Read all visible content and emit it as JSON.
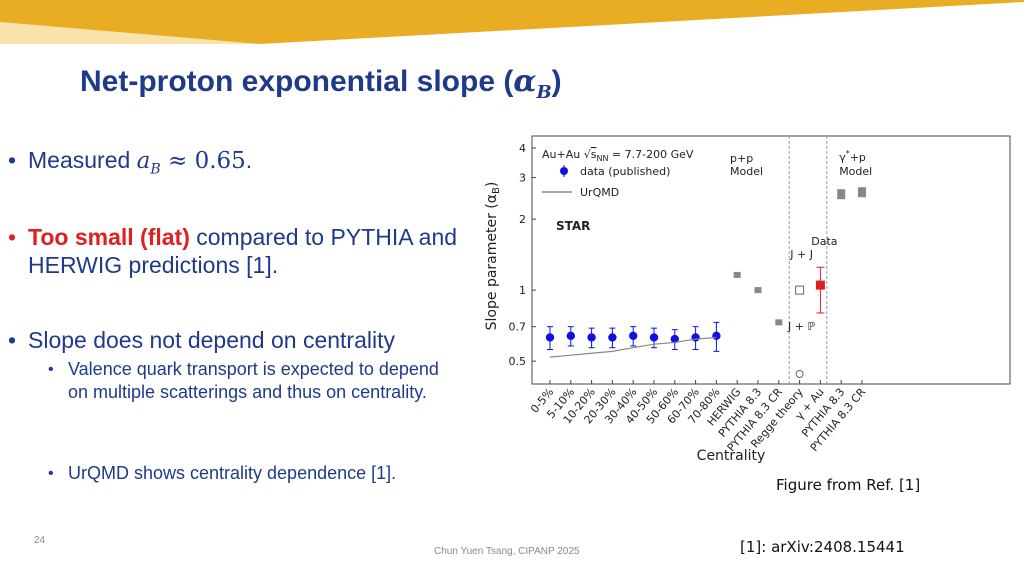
{
  "slide": {
    "title": "Net-proton exponential slope (",
    "title_var": "α",
    "title_sub": "B",
    "title_end": ")",
    "page_number": "24",
    "author": "Chun Yuen Tsang, CIPANP 2025",
    "reference": "[1]: arXiv:2408.15441",
    "figure_caption": "Figure from Ref. [1]",
    "colors": {
      "banner": "#e8ad22",
      "title": "#1f3a8a",
      "highlight": "#e02020"
    }
  },
  "bullets": {
    "b1_prefix": "Measured ",
    "b1_var": "a",
    "b1_sub": "B",
    "b1_approx": " ≈ 0.65",
    "b1_end": ".",
    "b2_red": "Too small (flat)",
    "b2_rest": " compared to PYTHIA and HERWIG predictions [1].",
    "b3": "Slope does not depend on centrality",
    "sub1": "Valence quark transport is expected to depend on multiple scatterings and thus on centrality.",
    "sub2": "UrQMD shows centrality dependence [1]."
  },
  "chart_data": {
    "type": "scatter",
    "xlabel": "Centrality",
    "ylabel": "Slope parameter (α",
    "ylabel_sub": "B",
    "ylabel_end": ")",
    "yscale": "log",
    "ylim": [
      0.4,
      4.5
    ],
    "yticks": [
      {
        "v": 0.5,
        "label": "0.5"
      },
      {
        "v": 0.7,
        "label": "0.7"
      },
      {
        "v": 1,
        "label": "1"
      },
      {
        "v": 2,
        "label": "2"
      },
      {
        "v": 3,
        "label": "3"
      },
      {
        "v": 4,
        "label": "4"
      }
    ],
    "categories": [
      "0-5%",
      "5-10%",
      "10-20%",
      "20-30%",
      "30-40%",
      "40-50%",
      "50-60%",
      "60-70%",
      "70-80%",
      "HERWIG",
      "PYTHIA 8.3",
      "PYTHIA 8.3 CR",
      "Regge theory",
      "γ + Au",
      "PYTHIA 8.3",
      "PYTHIA 8.3 CR"
    ],
    "legend": {
      "line1_a": "Au+Au ",
      "line1_b": "s",
      "line1_c": "NN",
      "line1_d": " = 7.7-200 GeV",
      "data": "data (published)",
      "model": "UrQMD",
      "star": "STAR"
    },
    "series": [
      {
        "name": "data (published)",
        "color": "#1010e0",
        "points": [
          {
            "x": 0,
            "y": 0.63,
            "err": 0.07
          },
          {
            "x": 1,
            "y": 0.64,
            "err": 0.06
          },
          {
            "x": 2,
            "y": 0.63,
            "err": 0.06
          },
          {
            "x": 3,
            "y": 0.63,
            "err": 0.06
          },
          {
            "x": 4,
            "y": 0.64,
            "err": 0.06
          },
          {
            "x": 5,
            "y": 0.63,
            "err": 0.06
          },
          {
            "x": 6,
            "y": 0.62,
            "err": 0.06
          },
          {
            "x": 7,
            "y": 0.63,
            "err": 0.07
          },
          {
            "x": 8,
            "y": 0.64,
            "err": 0.09
          }
        ]
      },
      {
        "name": "UrQMD",
        "color": "#888888",
        "line_x": [
          0,
          1,
          2,
          3,
          4,
          5,
          6,
          7,
          8
        ],
        "line_y": [
          0.52,
          0.53,
          0.54,
          0.55,
          0.57,
          0.59,
          0.6,
          0.62,
          0.63
        ]
      },
      {
        "name": "p+p Model",
        "color": "#888888",
        "points": [
          {
            "x": 9,
            "y": 1.16
          },
          {
            "x": 10,
            "y": 1.0
          },
          {
            "x": 11,
            "y": 0.73
          }
        ]
      },
      {
        "name": "Regge theory",
        "points": [
          {
            "x": 12,
            "y": 1.0,
            "label": "J + J"
          },
          {
            "x": 12,
            "y": 0.4,
            "label": "J + ℙ"
          }
        ]
      },
      {
        "name": "Data",
        "color": "#e02020",
        "points": [
          {
            "x": 13,
            "y": 1.05,
            "err_hi": 0.2,
            "err_lo": 0.25
          }
        ]
      },
      {
        "name": "γ*+p Model",
        "color": "#888888",
        "points": [
          {
            "x": 14,
            "y": 2.55
          },
          {
            "x": 15,
            "y": 2.6
          }
        ]
      }
    ],
    "annotations": {
      "pp": "p+p",
      "pp_model": "Model",
      "jj": "J + J",
      "jp": "J + ℙ",
      "data": "Data",
      "gp": "γ",
      "gp_sup": "*",
      "gp_rest": "+p",
      "gp_model": "Model"
    }
  }
}
